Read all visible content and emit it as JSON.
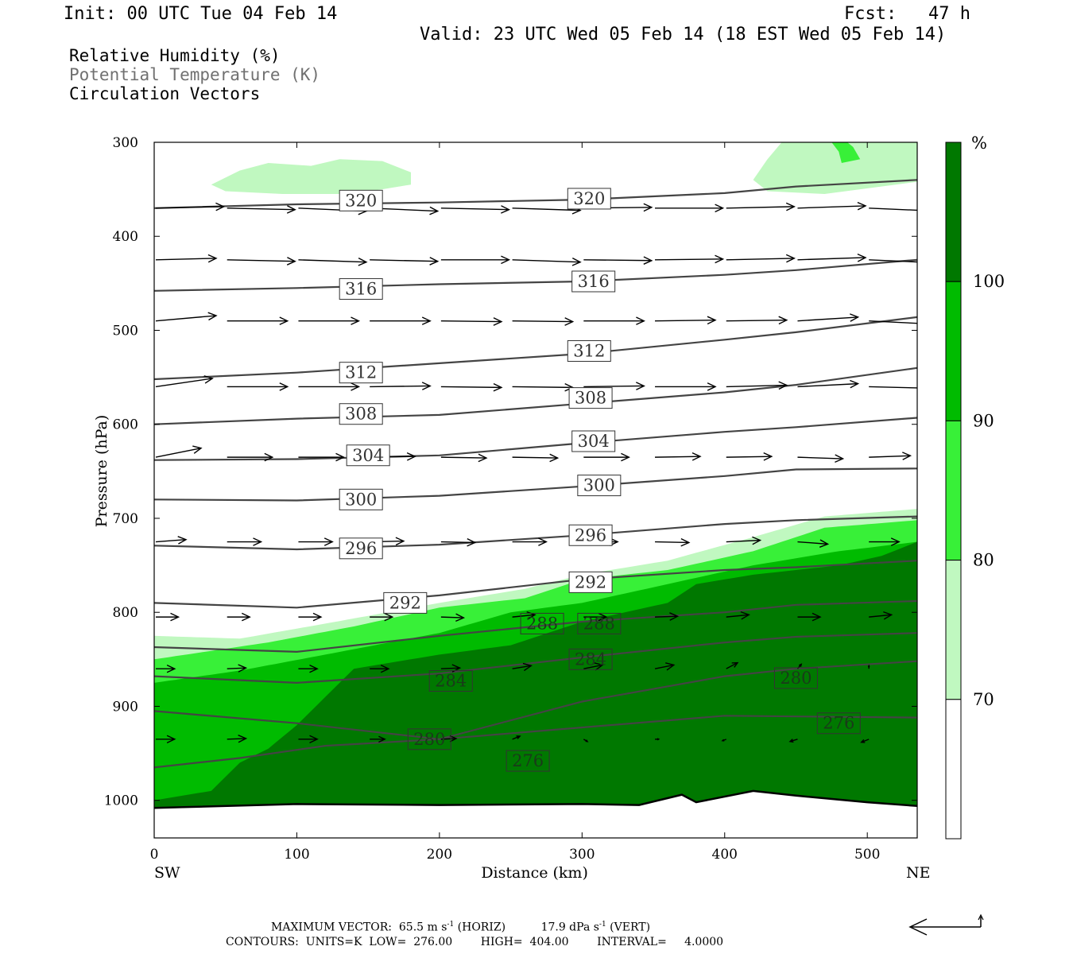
{
  "header": {
    "init": "Init: 00 UTC Tue 04 Feb 14",
    "fcst": "Fcst:   47 h",
    "valid": "Valid: 23 UTC Wed 05 Feb 14 (18 EST Wed 05 Feb 14)"
  },
  "fields": [
    {
      "label": "Relative Humidity (%)",
      "color": "#000000"
    },
    {
      "label": "Potential Temperature (K)",
      "color": "#707070"
    },
    {
      "label": "Circulation Vectors",
      "color": "#000000"
    }
  ],
  "chart_data": {
    "type": "cross-section",
    "xlabel": "Distance (km)",
    "ylabel": "Pressure (hPa)",
    "xlim": [
      0,
      535
    ],
    "ylim": [
      1040,
      300
    ],
    "x_ticks": [
      0,
      100,
      200,
      300,
      400,
      500
    ],
    "y_ticks": [
      300,
      400,
      500,
      600,
      700,
      800,
      900,
      1000
    ],
    "x_end_labels": {
      "left": "SW",
      "right": "NE"
    },
    "colorbar": {
      "unit": "%",
      "levels": [
        70,
        80,
        90,
        100
      ],
      "colors": [
        "#ffffff",
        "#c0f8c0",
        "#38f038",
        "#00bb00",
        "#007800"
      ]
    },
    "theta_contours": [
      {
        "value": 320,
        "points": [
          [
            0,
            370
          ],
          [
            100,
            366
          ],
          [
            200,
            364
          ],
          [
            300,
            361
          ],
          [
            400,
            354
          ],
          [
            450,
            347
          ],
          [
            535,
            340
          ]
        ],
        "labels": [
          [
            145,
            362
          ],
          [
            305,
            360
          ]
        ]
      },
      {
        "value": 316,
        "points": [
          [
            0,
            458
          ],
          [
            100,
            455
          ],
          [
            200,
            451
          ],
          [
            300,
            448
          ],
          [
            400,
            441
          ],
          [
            450,
            436
          ],
          [
            535,
            425
          ]
        ],
        "labels": [
          [
            145,
            456
          ],
          [
            308,
            448
          ]
        ]
      },
      {
        "value": 312,
        "points": [
          [
            0,
            552
          ],
          [
            100,
            545
          ],
          [
            200,
            535
          ],
          [
            300,
            525
          ],
          [
            400,
            510
          ],
          [
            450,
            502
          ],
          [
            535,
            486
          ]
        ],
        "labels": [
          [
            145,
            545
          ],
          [
            305,
            522
          ]
        ]
      },
      {
        "value": 308,
        "points": [
          [
            0,
            600
          ],
          [
            100,
            594
          ],
          [
            200,
            590
          ],
          [
            300,
            578
          ],
          [
            400,
            566
          ],
          [
            450,
            558
          ],
          [
            535,
            540
          ]
        ],
        "labels": [
          [
            145,
            589
          ],
          [
            306,
            572
          ]
        ]
      },
      {
        "value": 304,
        "points": [
          [
            0,
            638
          ],
          [
            100,
            637
          ],
          [
            200,
            633
          ],
          [
            300,
            620
          ],
          [
            400,
            608
          ],
          [
            450,
            603
          ],
          [
            535,
            593
          ]
        ],
        "labels": [
          [
            150,
            633
          ],
          [
            308,
            618
          ]
        ]
      },
      {
        "value": 300,
        "points": [
          [
            0,
            680
          ],
          [
            100,
            681
          ],
          [
            200,
            676
          ],
          [
            300,
            666
          ],
          [
            400,
            655
          ],
          [
            450,
            648
          ],
          [
            535,
            647
          ]
        ],
        "labels": [
          [
            145,
            680
          ],
          [
            312,
            665
          ]
        ]
      },
      {
        "value": 296,
        "points": [
          [
            0,
            729
          ],
          [
            100,
            733
          ],
          [
            200,
            728
          ],
          [
            300,
            718
          ],
          [
            400,
            706
          ],
          [
            450,
            702
          ],
          [
            535,
            698
          ]
        ],
        "labels": [
          [
            145,
            732
          ],
          [
            306,
            718
          ]
        ]
      },
      {
        "value": 292,
        "points": [
          [
            0,
            790
          ],
          [
            100,
            795
          ],
          [
            200,
            782
          ],
          [
            300,
            765
          ],
          [
            400,
            755
          ],
          [
            450,
            752
          ],
          [
            535,
            745
          ]
        ],
        "labels": [
          [
            176,
            790
          ],
          [
            306,
            768
          ]
        ]
      },
      {
        "value": 288,
        "points": [
          [
            0,
            837
          ],
          [
            100,
            842
          ],
          [
            200,
            825
          ],
          [
            300,
            810
          ],
          [
            400,
            800
          ],
          [
            450,
            792
          ],
          [
            535,
            788
          ]
        ],
        "labels": [
          [
            272,
            812
          ],
          [
            312,
            812
          ]
        ]
      },
      {
        "value": 284,
        "points": [
          [
            0,
            868
          ],
          [
            100,
            875
          ],
          [
            200,
            865
          ],
          [
            300,
            848
          ],
          [
            400,
            832
          ],
          [
            450,
            826
          ],
          [
            535,
            822
          ]
        ],
        "labels": [
          [
            208,
            873
          ],
          [
            306,
            850
          ]
        ]
      },
      {
        "value": 280,
        "points": [
          [
            0,
            905
          ],
          [
            100,
            918
          ],
          [
            200,
            935
          ],
          [
            300,
            895
          ],
          [
            400,
            868
          ],
          [
            450,
            860
          ],
          [
            535,
            852
          ]
        ],
        "labels": [
          [
            193,
            935
          ],
          [
            450,
            870
          ]
        ]
      },
      {
        "value": 276,
        "points": [
          [
            0,
            965
          ],
          [
            60,
            955
          ],
          [
            120,
            942
          ],
          [
            200,
            935
          ],
          [
            280,
            925
          ],
          [
            400,
            910
          ],
          [
            535,
            912
          ]
        ],
        "labels": [
          [
            262,
            958
          ],
          [
            480,
            918
          ]
        ]
      }
    ],
    "terrain": [
      [
        0,
        1008
      ],
      [
        100,
        1004
      ],
      [
        200,
        1005
      ],
      [
        300,
        1004
      ],
      [
        340,
        1005
      ],
      [
        370,
        994
      ],
      [
        380,
        1002
      ],
      [
        420,
        990
      ],
      [
        450,
        995
      ],
      [
        500,
        1002
      ],
      [
        535,
        1006
      ]
    ],
    "vectors": {
      "rows": [
        {
          "p": 370,
          "x": [
            0,
            50,
            100,
            150,
            200,
            250,
            300,
            350,
            400,
            450,
            500
          ],
          "u": [
            [
              0.9,
              -0.02
            ],
            [
              0.9,
              0.02
            ],
            [
              0.9,
              0.04
            ],
            [
              0.9,
              0.04
            ],
            [
              0.9,
              0.02
            ],
            [
              0.9,
              0.03
            ],
            [
              0.9,
              -0.01
            ],
            [
              0.9,
              0.0
            ],
            [
              0.9,
              -0.02
            ],
            [
              0.9,
              -0.03
            ],
            [
              0.9,
              0.04
            ]
          ]
        },
        {
          "p": 425,
          "x": [
            0,
            50,
            100,
            150,
            200,
            250,
            300,
            350,
            400,
            450,
            500
          ],
          "u": [
            [
              0.8,
              -0.02
            ],
            [
              0.9,
              0.02
            ],
            [
              0.9,
              0.03
            ],
            [
              0.9,
              0.02
            ],
            [
              0.9,
              0.0
            ],
            [
              0.9,
              0.03
            ],
            [
              0.9,
              0.01
            ],
            [
              0.9,
              -0.01
            ],
            [
              0.9,
              -0.02
            ],
            [
              0.9,
              -0.03
            ],
            [
              0.9,
              0.04
            ]
          ]
        },
        {
          "p": 490,
          "x": [
            0,
            50,
            100,
            150,
            200,
            250,
            300,
            350,
            400,
            450,
            500
          ],
          "u": [
            [
              0.8,
              -0.07
            ],
            [
              0.8,
              0.0
            ],
            [
              0.8,
              0.0
            ],
            [
              0.8,
              0.0
            ],
            [
              0.8,
              0.01
            ],
            [
              0.8,
              0.01
            ],
            [
              0.8,
              0.0
            ],
            [
              0.8,
              -0.01
            ],
            [
              0.8,
              -0.01
            ],
            [
              0.8,
              -0.05
            ],
            [
              0.8,
              0.04
            ]
          ]
        },
        {
          "p": 560,
          "x": [
            0,
            50,
            100,
            150,
            200,
            250,
            300,
            350,
            400,
            450,
            500
          ],
          "u": [
            [
              0.75,
              -0.11
            ],
            [
              0.8,
              0.0
            ],
            [
              0.8,
              0.0
            ],
            [
              0.8,
              -0.01
            ],
            [
              0.8,
              0.01
            ],
            [
              0.8,
              0.01
            ],
            [
              0.8,
              -0.01
            ],
            [
              0.8,
              0.0
            ],
            [
              0.8,
              -0.02
            ],
            [
              0.8,
              -0.04
            ],
            [
              0.8,
              0.02
            ]
          ]
        },
        {
          "p": 635,
          "x": [
            0,
            50,
            100,
            150,
            200,
            250,
            300,
            350,
            400,
            450,
            500
          ],
          "u": [
            [
              0.6,
              -0.12
            ],
            [
              0.6,
              0.0
            ],
            [
              0.6,
              0.0
            ],
            [
              0.6,
              -0.01
            ],
            [
              0.6,
              0.01
            ],
            [
              0.6,
              0.01
            ],
            [
              0.6,
              0.0
            ],
            [
              0.6,
              -0.01
            ],
            [
              0.6,
              -0.01
            ],
            [
              0.6,
              0.02
            ],
            [
              0.55,
              -0.02
            ]
          ]
        },
        {
          "p": 725,
          "x": [
            0,
            50,
            100,
            150,
            200,
            250,
            300,
            350,
            400,
            450,
            500
          ],
          "u": [
            [
              0.4,
              -0.03
            ],
            [
              0.45,
              0.0
            ],
            [
              0.45,
              0.0
            ],
            [
              0.45,
              -0.01
            ],
            [
              0.45,
              0.01
            ],
            [
              0.45,
              0.0
            ],
            [
              0.45,
              0.0
            ],
            [
              0.45,
              0.01
            ],
            [
              0.45,
              -0.02
            ],
            [
              0.4,
              0.03
            ],
            [
              0.4,
              0.0
            ]
          ]
        },
        {
          "p": 805,
          "x": [
            0,
            50,
            100,
            150,
            200,
            250,
            300,
            350,
            400,
            450,
            500
          ],
          "u": [
            [
              0.3,
              0.0
            ],
            [
              0.3,
              0.0
            ],
            [
              0.3,
              0.0
            ],
            [
              0.3,
              0.0
            ],
            [
              0.3,
              0.01
            ],
            [
              0.3,
              -0.03
            ],
            [
              0.3,
              0.0
            ],
            [
              0.3,
              -0.01
            ],
            [
              0.3,
              -0.03
            ],
            [
              0.3,
              0.0
            ],
            [
              0.3,
              -0.03
            ]
          ]
        },
        {
          "p": 860,
          "x": [
            0,
            50,
            100,
            150,
            200,
            250,
            300,
            350,
            400,
            450,
            500
          ],
          "u": [
            [
              0.25,
              0.0
            ],
            [
              0.25,
              -0.01
            ],
            [
              0.25,
              0.0
            ],
            [
              0.25,
              0.0
            ],
            [
              0.25,
              -0.01
            ],
            [
              0.25,
              -0.04
            ],
            [
              0.25,
              -0.05
            ],
            [
              0.25,
              -0.05
            ],
            [
              0.15,
              -0.08
            ],
            [
              0.05,
              -0.06
            ],
            [
              0.0,
              -0.04
            ]
          ]
        },
        {
          "p": 935,
          "x": [
            0,
            50,
            100,
            150,
            200,
            250,
            300,
            350,
            400,
            450,
            500
          ],
          "u": [
            [
              0.25,
              0.0
            ],
            [
              0.25,
              -0.01
            ],
            [
              0.25,
              0.0
            ],
            [
              0.2,
              0.0
            ],
            [
              0.2,
              -0.01
            ],
            [
              0.1,
              -0.04
            ],
            [
              0.05,
              0.03
            ],
            [
              0.05,
              0.0
            ],
            [
              -0.05,
              0.02
            ],
            [
              -0.1,
              0.03
            ],
            [
              -0.1,
              0.04
            ]
          ]
        }
      ]
    }
  },
  "footer": {
    "line1_a": "MAXIMUM VECTOR:  65.5 m s",
    "line1_a_sup": "-1",
    "line1_b": " (HORIZ)          17.9 dPa s",
    "line1_b_sup": "-1",
    "line1_c": " (VERT)",
    "line2": "CONTOURS:  UNITS=K  LOW=  276.00        HIGH=  404.00        INTERVAL=     4.0000"
  }
}
